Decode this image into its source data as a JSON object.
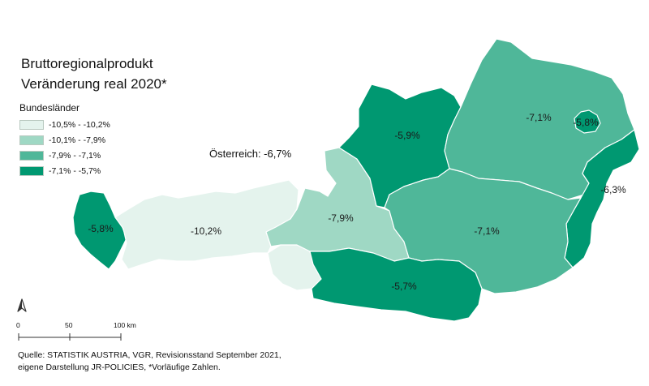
{
  "title": {
    "line1": "Bruttoregionalprodukt",
    "line2": "Veränderung real 2020*"
  },
  "legend": {
    "heading": "Bundesländer",
    "classes": [
      {
        "label": "-10,5% - -10,2%",
        "color": "#e4f3ed"
      },
      {
        "label": "-10,1% - -7,9%",
        "color": "#9fd8c4"
      },
      {
        "label": "-7,9% - -7,1%",
        "color": "#4fb799"
      },
      {
        "label": "-7,1% - -5,7%",
        "color": "#009871"
      }
    ]
  },
  "austria_label": "Österreich: -6,7%",
  "regions": [
    {
      "name": "Vorarlberg",
      "value_label": "-5,8%",
      "class_index": 3
    },
    {
      "name": "Tirol",
      "value_label": "-10,2%",
      "class_index": 0
    },
    {
      "name": "Osttirol",
      "value_label": "",
      "class_index": 0
    },
    {
      "name": "Salzburg",
      "value_label": "-7,9%",
      "class_index": 1
    },
    {
      "name": "Oberösterreich",
      "value_label": "-5,9%",
      "class_index": 3
    },
    {
      "name": "Niederösterreich",
      "value_label": "-7,1%",
      "class_index": 2
    },
    {
      "name": "Wien",
      "value_label": "-5,8%",
      "class_index": 3
    },
    {
      "name": "Burgenland",
      "value_label": "-6,3%",
      "class_index": 3
    },
    {
      "name": "Steiermark",
      "value_label": "-7,1%",
      "class_index": 2
    },
    {
      "name": "Kärnten",
      "value_label": "-5,7%",
      "class_index": 3
    }
  ],
  "north_arrow": {
    "icon": "north-arrow-icon"
  },
  "scale_bar": {
    "ticks": [
      "0",
      "50",
      "100 km"
    ]
  },
  "source": {
    "line1": "Quelle: STATISTIK AUSTRIA, VGR, Revisionsstand September 2021,",
    "line2": "eigene Darstellung JR-POLICIES, *Vorläufige Zahlen."
  }
}
